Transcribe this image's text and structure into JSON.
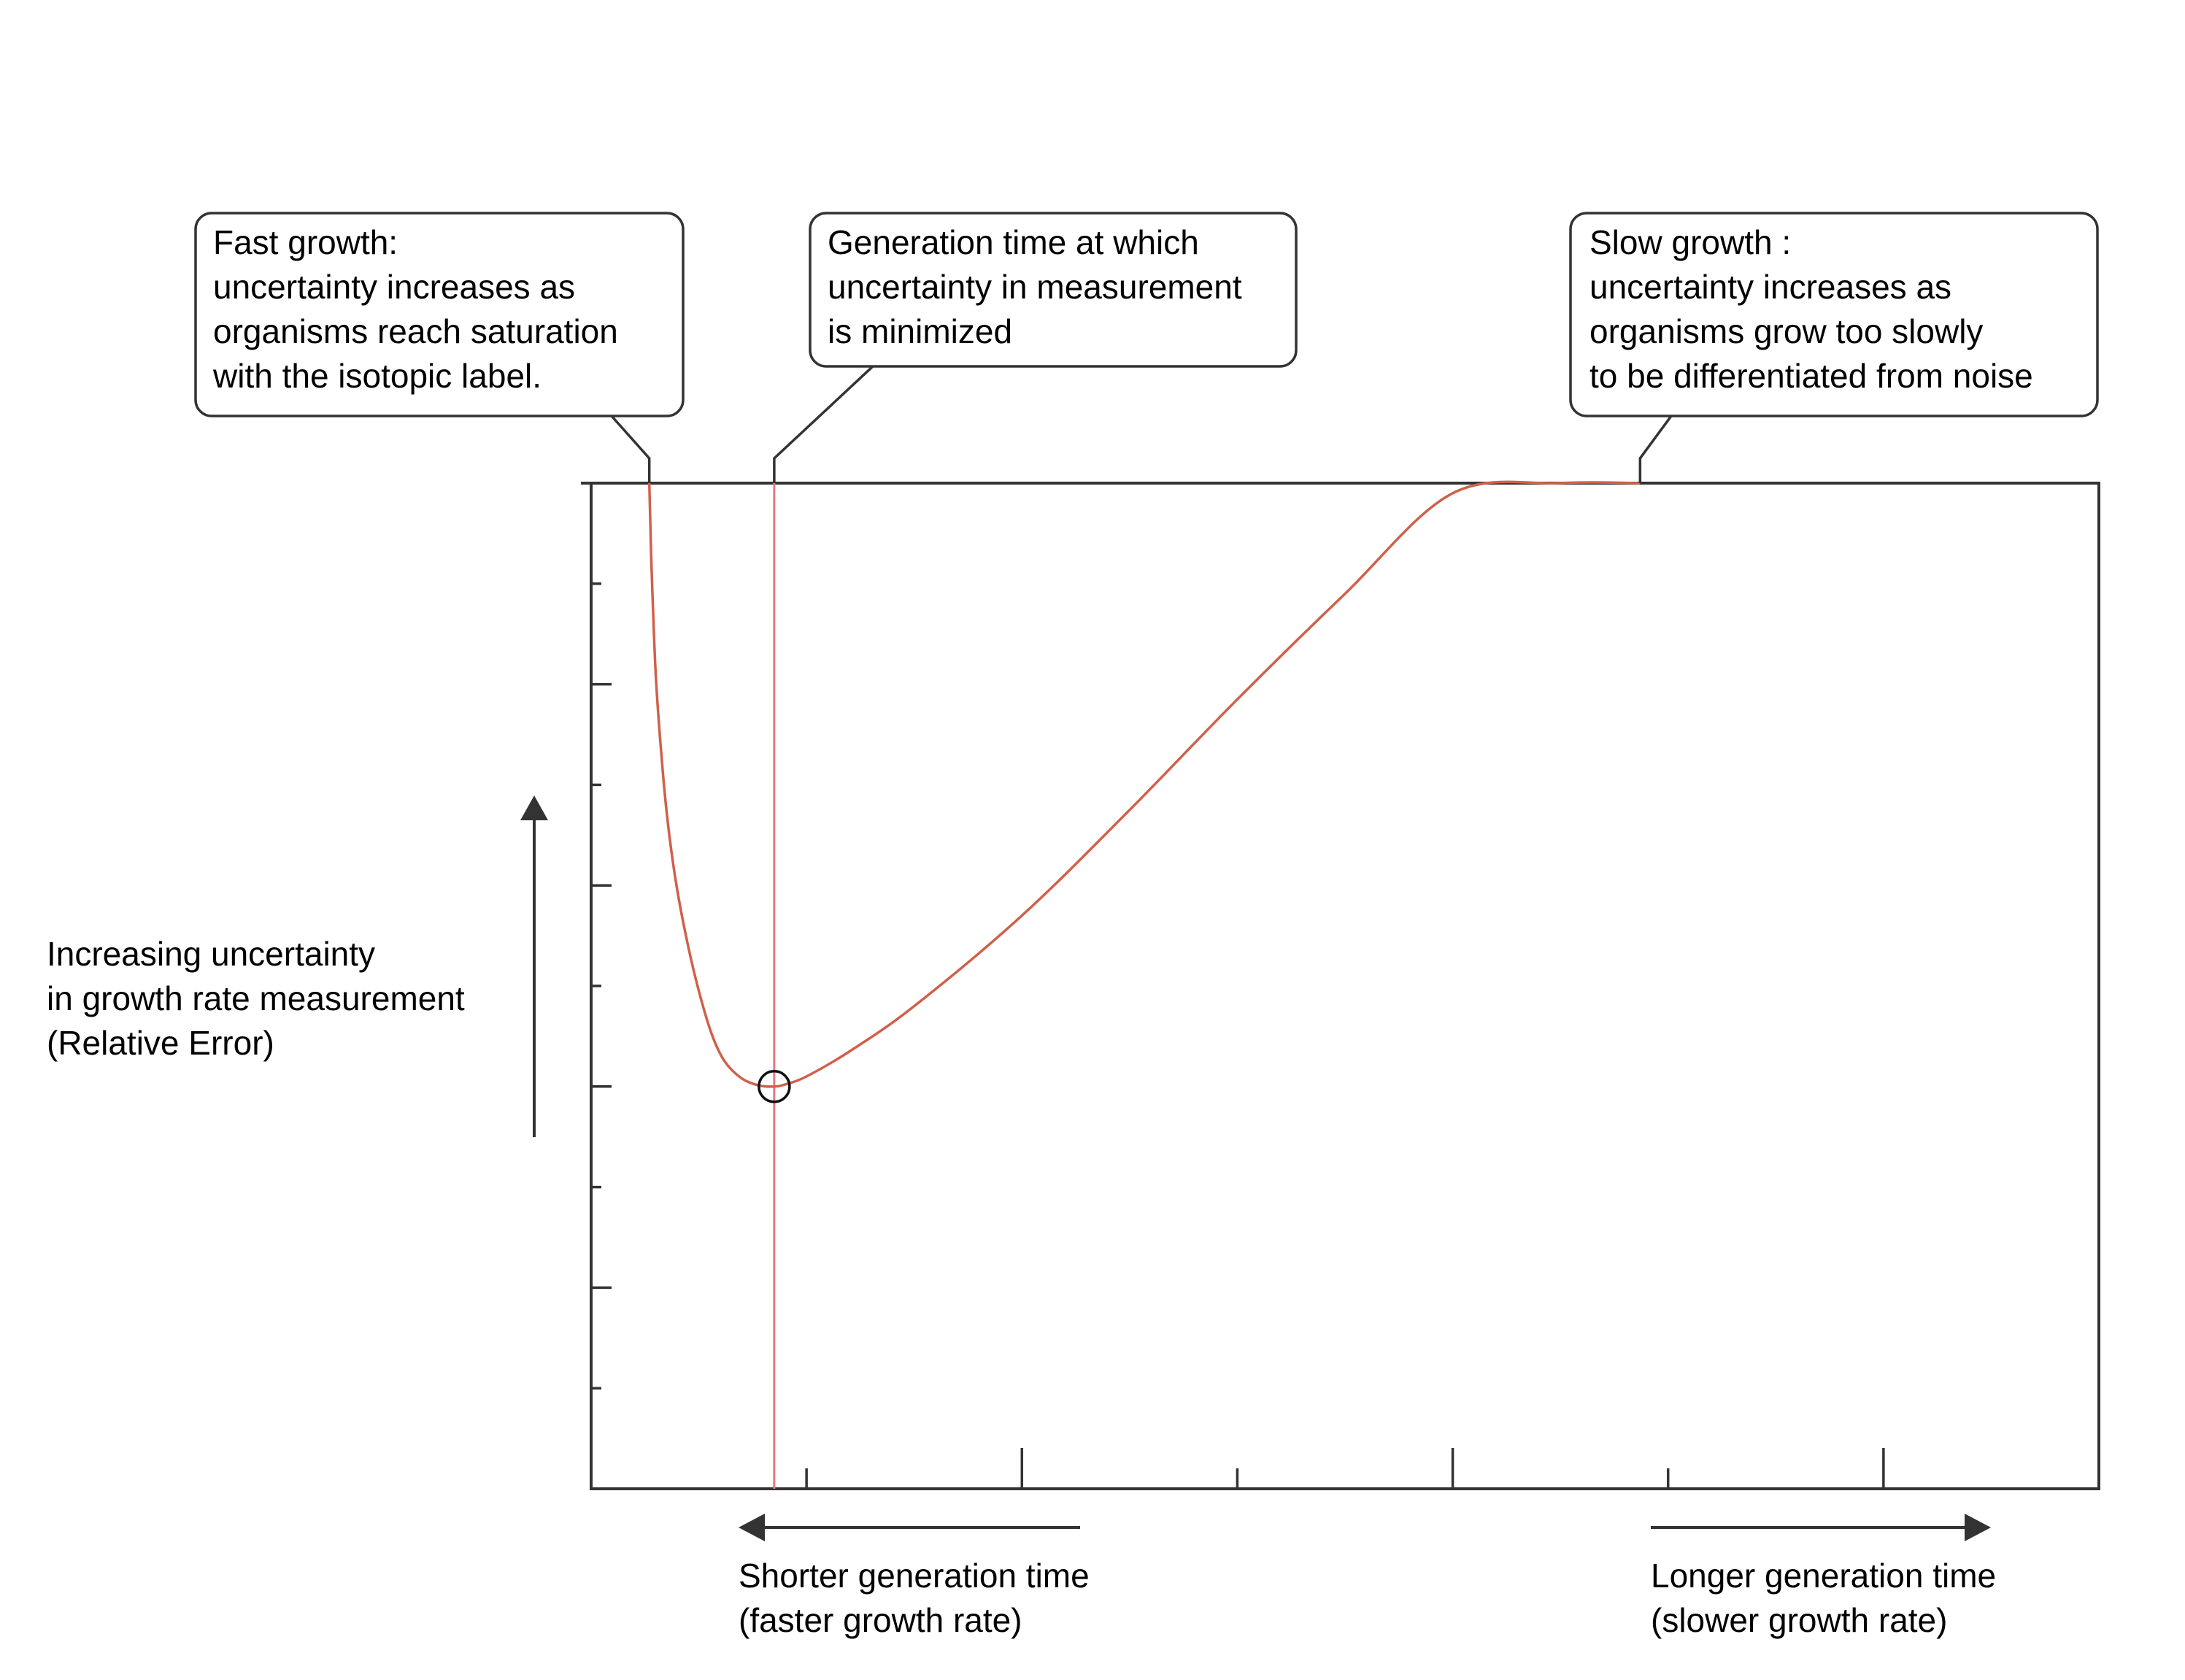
{
  "annotations": {
    "fast": {
      "lines": [
        "Fast growth:",
        "uncertainty increases as",
        "organisms reach saturation",
        "with the isotopic label."
      ]
    },
    "optimum": {
      "lines": [
        "Generation time at which",
        "uncertainty in measurement",
        "is minimized"
      ]
    },
    "slow": {
      "lines": [
        "Slow growth :",
        "uncertainty increases as",
        "organisms grow too slowly",
        "to be differentiated from noise"
      ]
    }
  },
  "axes": {
    "y_label_lines": [
      "Increasing uncertainty",
      "in growth rate measurement",
      "(Relative Error)"
    ],
    "x_left_lines": [
      "Shorter generation time",
      "(faster growth rate)"
    ],
    "x_right_lines": [
      "Longer generation time",
      "(slower growth rate)"
    ]
  },
  "chart_data": {
    "type": "line",
    "title": "",
    "xlabel": "",
    "ylabel": "",
    "xlim": [
      0,
      7
    ],
    "ylim": [
      0,
      10
    ],
    "x_ticks": [
      1,
      2,
      3,
      4,
      5,
      6
    ],
    "y_ticks": [
      1,
      2,
      3,
      4,
      5,
      6,
      7,
      8,
      9
    ],
    "grid": false,
    "legend": "none",
    "series": [
      {
        "color": "#d0604a",
        "x": [
          0.27,
          0.28,
          0.3,
          0.33,
          0.36,
          0.4,
          0.45,
          0.5,
          0.56,
          0.62,
          0.7,
          0.78,
          0.85,
          0.9,
          1.0,
          1.2,
          1.5,
          2.0,
          2.5,
          3.0,
          3.5,
          4.0,
          4.5,
          4.87
        ],
        "y": [
          10.0,
          9.2,
          8.1,
          7.2,
          6.55,
          5.95,
          5.4,
          4.95,
          4.52,
          4.25,
          4.08,
          4.01,
          4.0,
          4.02,
          4.1,
          4.35,
          4.8,
          5.7,
          6.75,
          7.85,
          8.9,
          9.9,
          10.0,
          10.0
        ]
      }
    ],
    "minimum": {
      "x": 0.85,
      "y": 4.0
    },
    "vline_x": 0.85,
    "vline_color": "#e07a80",
    "callout_points": [
      {
        "id": "fast",
        "x": 0.27,
        "y": 10
      },
      {
        "id": "optimum",
        "x": 0.85,
        "y": 10
      },
      {
        "id": "slow",
        "x": 4.87,
        "y": 10
      }
    ]
  }
}
